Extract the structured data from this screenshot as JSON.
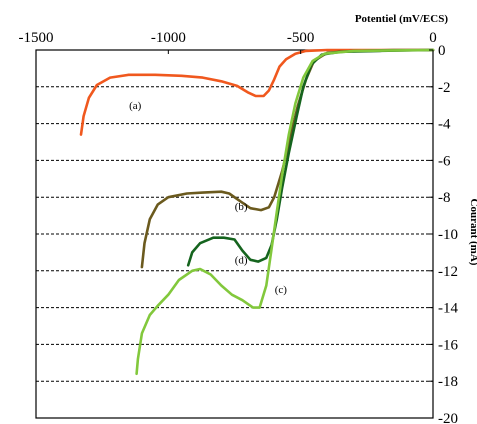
{
  "chart_data": {
    "type": "line",
    "title": "",
    "xlabel": "Potentiel (mV/ECS)",
    "ylabel": "Courant (mA)",
    "xlim": [
      -1500,
      0
    ],
    "ylim": [
      -20,
      0
    ],
    "x_ticks": [
      -1500,
      -1000,
      -500,
      0
    ],
    "x_tick_labels": [
      "-1500",
      "-1000",
      "-500",
      "0"
    ],
    "y_ticks": [
      0,
      -2,
      -4,
      -6,
      -8,
      -10,
      -12,
      -14,
      -16,
      -18,
      -20
    ],
    "y_tick_labels": [
      "0",
      "-2",
      "-4",
      "-6",
      "-8",
      "-10",
      "-12",
      "-14",
      "-16",
      "-18",
      "-20"
    ],
    "grid": "horizontal-dashed",
    "series": [
      {
        "name": "(a)",
        "color": "#f0581e",
        "label_at": [
          -1125,
          -3.2
        ],
        "points": [
          [
            -1330,
            -4.6
          ],
          [
            -1320,
            -3.6
          ],
          [
            -1300,
            -2.6
          ],
          [
            -1270,
            -1.9
          ],
          [
            -1220,
            -1.5
          ],
          [
            -1150,
            -1.35
          ],
          [
            -1050,
            -1.35
          ],
          [
            -950,
            -1.4
          ],
          [
            -870,
            -1.5
          ],
          [
            -800,
            -1.7
          ],
          [
            -740,
            -1.95
          ],
          [
            -700,
            -2.3
          ],
          [
            -670,
            -2.5
          ],
          [
            -640,
            -2.5
          ],
          [
            -620,
            -2.2
          ],
          [
            -600,
            -1.6
          ],
          [
            -580,
            -0.9
          ],
          [
            -555,
            -0.5
          ],
          [
            -520,
            -0.2
          ],
          [
            -480,
            -0.05
          ],
          [
            -400,
            0
          ],
          [
            -200,
            0
          ],
          [
            0,
            0
          ]
        ]
      },
      {
        "name": "(b)",
        "color": "#6b5a1e",
        "label_at": [
          -725,
          -8.7
        ],
        "points": [
          [
            -1100,
            -11.8
          ],
          [
            -1090,
            -10.5
          ],
          [
            -1070,
            -9.2
          ],
          [
            -1040,
            -8.4
          ],
          [
            -1000,
            -8.0
          ],
          [
            -930,
            -7.8
          ],
          [
            -870,
            -7.75
          ],
          [
            -800,
            -7.7
          ],
          [
            -770,
            -7.8
          ],
          [
            -730,
            -8.2
          ],
          [
            -690,
            -8.6
          ],
          [
            -650,
            -8.7
          ],
          [
            -620,
            -8.55
          ],
          [
            -600,
            -8.0
          ],
          [
            -570,
            -6.6
          ],
          [
            -540,
            -4.8
          ],
          [
            -510,
            -3.0
          ],
          [
            -480,
            -1.6
          ],
          [
            -450,
            -0.6
          ],
          [
            -400,
            -0.15
          ],
          [
            -300,
            -0.05
          ],
          [
            -150,
            0
          ],
          [
            0,
            0
          ]
        ]
      },
      {
        "name": "(d)",
        "color": "#15641e",
        "label_at": [
          -725,
          -11.6
        ],
        "points": [
          [
            -925,
            -11.7
          ],
          [
            -910,
            -11.0
          ],
          [
            -880,
            -10.5
          ],
          [
            -830,
            -10.2
          ],
          [
            -790,
            -10.2
          ],
          [
            -750,
            -10.3
          ],
          [
            -720,
            -10.9
          ],
          [
            -690,
            -11.4
          ],
          [
            -660,
            -11.5
          ],
          [
            -630,
            -11.3
          ],
          [
            -610,
            -10.6
          ],
          [
            -590,
            -9.2
          ],
          [
            -570,
            -7.5
          ],
          [
            -545,
            -5.6
          ],
          [
            -515,
            -3.6
          ],
          [
            -490,
            -2.0
          ],
          [
            -460,
            -0.8
          ],
          [
            -420,
            -0.25
          ],
          [
            -350,
            -0.1
          ],
          [
            -200,
            -0.05
          ],
          [
            0,
            0
          ]
        ]
      },
      {
        "name": "(c)",
        "color": "#82c83c",
        "label_at": [
          -575,
          -13.2
        ],
        "points": [
          [
            -1120,
            -17.6
          ],
          [
            -1115,
            -16.8
          ],
          [
            -1100,
            -15.4
          ],
          [
            -1070,
            -14.4
          ],
          [
            -1040,
            -13.9
          ],
          [
            -1000,
            -13.3
          ],
          [
            -960,
            -12.5
          ],
          [
            -910,
            -12.0
          ],
          [
            -880,
            -11.9
          ],
          [
            -840,
            -12.2
          ],
          [
            -800,
            -12.8
          ],
          [
            -760,
            -13.3
          ],
          [
            -720,
            -13.6
          ],
          [
            -680,
            -14.0
          ],
          [
            -655,
            -14.0
          ],
          [
            -630,
            -12.8
          ],
          [
            -610,
            -10.8
          ],
          [
            -590,
            -8.8
          ],
          [
            -570,
            -6.8
          ],
          [
            -545,
            -4.6
          ],
          [
            -520,
            -2.9
          ],
          [
            -490,
            -1.5
          ],
          [
            -455,
            -0.6
          ],
          [
            -410,
            -0.2
          ],
          [
            -300,
            -0.05
          ],
          [
            0,
            0
          ]
        ]
      }
    ]
  }
}
